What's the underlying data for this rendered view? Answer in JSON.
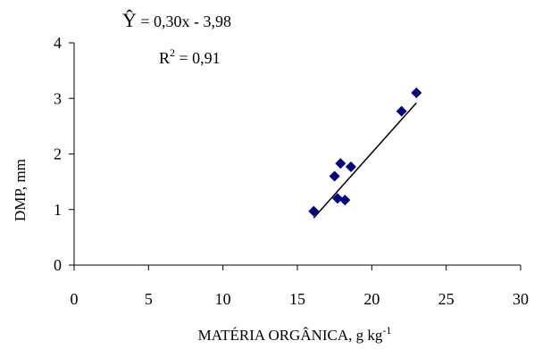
{
  "chart_data": {
    "type": "scatter",
    "xlabel": "MATÉRIA ORGÂNICA, g kg",
    "xlabel_sup": "-1",
    "ylabel": "DMP, mm",
    "xlim": [
      0,
      30
    ],
    "ylim": [
      0,
      4
    ],
    "xticks": [
      0,
      5,
      10,
      15,
      20,
      25,
      30
    ],
    "yticks": [
      0,
      1,
      2,
      3,
      4
    ],
    "grid": false,
    "legend": "none",
    "marker": "diamond",
    "marker_color": "#000080",
    "points": [
      {
        "x": 16.1,
        "y": 0.97
      },
      {
        "x": 17.5,
        "y": 1.6
      },
      {
        "x": 17.7,
        "y": 1.2
      },
      {
        "x": 17.9,
        "y": 1.83
      },
      {
        "x": 18.2,
        "y": 1.17
      },
      {
        "x": 18.6,
        "y": 1.77
      },
      {
        "x": 22.0,
        "y": 2.77
      },
      {
        "x": 23.0,
        "y": 3.1
      }
    ],
    "fit_line": {
      "x_start": 16.1,
      "x_end": 23.0,
      "slope": 0.3,
      "intercept": -3.98,
      "color": "#000000"
    },
    "annotations": {
      "equation_lhs": "Ŷ",
      "equation_rhs": " = 0,30x - 3,98",
      "r2_prefix": "R",
      "r2_sup": "2",
      "r2_value": " = 0,91"
    }
  }
}
